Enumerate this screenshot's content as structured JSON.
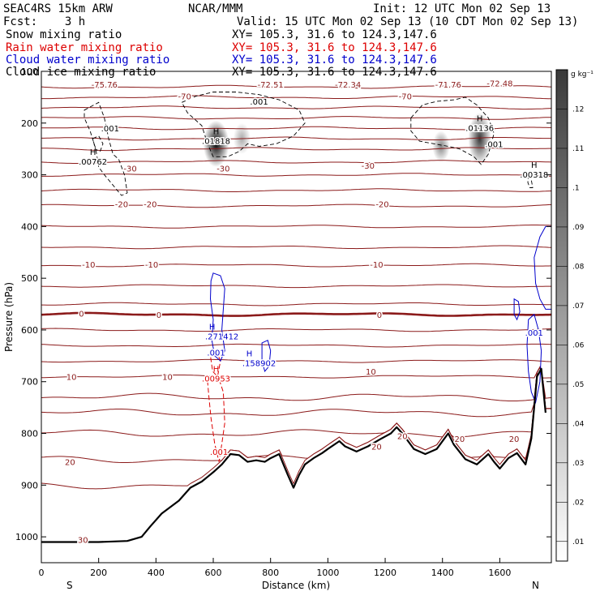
{
  "header": {
    "line1_left": "SEAC4RS 15km ARW",
    "line1_center": "NCAR/MMM",
    "line1_right": "Init: 12 UTC Mon 02 Sep 13",
    "line2_left": "Fcst:    3 h",
    "line2_right": "Valid: 15 UTC Mon 02 Sep 13 (10 CDT Mon 02 Sep 13)",
    "legend": [
      {
        "name": "Snow mixing ratio",
        "xy": "XY= 105.3, 31.6 to 124.3,147.6",
        "color": "#000000"
      },
      {
        "name": "Rain water mixing ratio",
        "xy": "XY= 105.3, 31.6 to 124.3,147.6",
        "color": "#dd0000"
      },
      {
        "name": "Cloud water mixing ratio",
        "xy": "XY= 105.3, 31.6 to 124.3,147.6",
        "color": "#0000cc"
      },
      {
        "name": "Cloud ice mixing ratio",
        "xy": "XY= 105.3, 31.6 to 124.3,147.6",
        "color": "#000000"
      }
    ]
  },
  "chart_data": {
    "type": "cross-section",
    "xlabel": "Distance (km)",
    "ylabel": "Pressure (hPa)",
    "xlim": [
      0,
      1780
    ],
    "ylim": [
      1050,
      100
    ],
    "x_ticks": [
      "0",
      "200",
      "400",
      "600",
      "800",
      "1000",
      "1200",
      "1400",
      "1600"
    ],
    "x_tick_values": [
      0,
      200,
      400,
      600,
      800,
      1000,
      1200,
      1400,
      1600
    ],
    "y_ticks": [
      "100",
      "200",
      "300",
      "400",
      "500",
      "600",
      "700",
      "800",
      "900",
      "1000"
    ],
    "y_tick_values": [
      100,
      200,
      300,
      400,
      500,
      600,
      700,
      800,
      900,
      1000
    ],
    "end_labels": {
      "left": "S",
      "right": "N"
    },
    "colorbar": {
      "units": "g kg⁻¹",
      "ticks": [
        ".12",
        ".11",
        ".1",
        ".09",
        ".08",
        ".07",
        ".06",
        ".05",
        ".04",
        ".03",
        ".02",
        ".01"
      ],
      "tick_values": [
        0.12,
        0.11,
        0.1,
        0.09,
        0.08,
        0.07,
        0.06,
        0.05,
        0.04,
        0.03,
        0.02,
        0.01
      ],
      "min": 0.005,
      "max": 0.13
    },
    "temperature_color": "#8b1a1a",
    "temperature_levels_p": [
      130,
      150,
      170,
      190,
      210,
      230,
      250,
      275,
      300,
      330,
      360,
      400,
      440,
      475,
      515,
      550,
      570,
      600,
      630,
      660,
      690,
      730,
      760,
      800,
      850,
      900
    ],
    "freezing_level_p": 570,
    "temperature_labels": [
      {
        "text": "-75.76",
        "x": 220,
        "p": 125
      },
      {
        "text": "-72.51",
        "x": 800,
        "p": 125
      },
      {
        "text": "-72.34",
        "x": 1070,
        "p": 125
      },
      {
        "text": "-71.76",
        "x": 1420,
        "p": 125
      },
      {
        "text": "-72.48",
        "x": 1600,
        "p": 123
      },
      {
        "text": "-70",
        "x": 500,
        "p": 148
      },
      {
        "text": "-70",
        "x": 1270,
        "p": 148
      },
      {
        "text": "-30",
        "x": 310,
        "p": 287
      },
      {
        "text": "-30",
        "x": 635,
        "p": 287
      },
      {
        "text": "-30",
        "x": 1140,
        "p": 282
      },
      {
        "text": "-20",
        "x": 280,
        "p": 356
      },
      {
        "text": "-20",
        "x": 380,
        "p": 356
      },
      {
        "text": "-20",
        "x": 1190,
        "p": 356
      },
      {
        "text": "-10",
        "x": 165,
        "p": 473
      },
      {
        "text": "-10",
        "x": 385,
        "p": 473
      },
      {
        "text": "-10",
        "x": 1170,
        "p": 473
      },
      {
        "text": "0",
        "x": 140,
        "p": 568
      },
      {
        "text": "0",
        "x": 410,
        "p": 570
      },
      {
        "text": "0",
        "x": 1180,
        "p": 570
      },
      {
        "text": "10",
        "x": 105,
        "p": 690
      },
      {
        "text": "10",
        "x": 440,
        "p": 690
      },
      {
        "text": "10",
        "x": 1150,
        "p": 680
      },
      {
        "text": "20",
        "x": 100,
        "p": 855
      },
      {
        "text": "20",
        "x": 1170,
        "p": 825
      },
      {
        "text": "20",
        "x": 1260,
        "p": 805
      },
      {
        "text": "20",
        "x": 1460,
        "p": 810
      },
      {
        "text": "20",
        "x": 1650,
        "p": 810
      },
      {
        "text": "30",
        "x": 145,
        "p": 1005
      }
    ],
    "terrain_x": [
      0,
      100,
      200,
      300,
      350,
      380,
      420,
      480,
      520,
      560,
      600,
      630,
      660,
      690,
      720,
      750,
      780,
      800,
      830,
      860,
      880,
      900,
      920,
      950,
      980,
      1000,
      1040,
      1060,
      1100,
      1140,
      1180,
      1220,
      1240,
      1260,
      1300,
      1340,
      1380,
      1420,
      1440,
      1480,
      1520,
      1560,
      1580,
      1600,
      1630,
      1660,
      1690,
      1710,
      1730,
      1745,
      1760
    ],
    "terrain_p": [
      1010,
      1010,
      1010,
      1008,
      1000,
      980,
      955,
      930,
      905,
      893,
      875,
      860,
      840,
      842,
      855,
      852,
      855,
      848,
      840,
      880,
      905,
      880,
      860,
      848,
      838,
      830,
      815,
      825,
      835,
      825,
      812,
      800,
      788,
      800,
      830,
      840,
      830,
      800,
      822,
      850,
      860,
      840,
      855,
      868,
      848,
      838,
      860,
      810,
      690,
      675,
      760
    ],
    "snow_maxima": [
      {
        "label": ".00762",
        "x": 180,
        "p": 280
      },
      {
        "label": ".01818",
        "x": 610,
        "p": 240
      },
      {
        "label": ".01136",
        "x": 1530,
        "p": 215
      },
      {
        "label": ".00318",
        "x": 1720,
        "p": 305
      }
    ],
    "snow_contour_labels": [
      {
        "text": ".001",
        "x": 240,
        "p": 210
      },
      {
        "text": ".001",
        "x": 760,
        "p": 158
      },
      {
        "text": ".001",
        "x": 1580,
        "p": 240
      }
    ],
    "rain_maxima": [
      {
        "label": ".00953",
        "x": 610,
        "p": 700
      }
    ],
    "rain_contour_labels": [
      {
        "text": ".001",
        "x": 620,
        "p": 835
      }
    ],
    "cloud_water_maxima": [
      {
        "label": ".271412",
        "x": 630,
        "p": 618
      },
      {
        "label": ".158902",
        "x": 760,
        "p": 670
      }
    ],
    "cloud_water_contour_labels": [
      {
        "text": ".001",
        "x": 610,
        "p": 643
      },
      {
        "text": ".001",
        "x": 1720,
        "p": 605
      }
    ],
    "cloud_ice_regions": [
      {
        "x": 610,
        "p": 240,
        "rx": 45,
        "rp": 45,
        "strength": 0.12
      },
      {
        "x": 700,
        "p": 230,
        "rx": 30,
        "rp": 30,
        "strength": 0.03
      },
      {
        "x": 1395,
        "p": 245,
        "rx": 30,
        "rp": 30,
        "strength": 0.05
      },
      {
        "x": 1530,
        "p": 230,
        "rx": 40,
        "rp": 50,
        "strength": 0.09
      }
    ]
  }
}
